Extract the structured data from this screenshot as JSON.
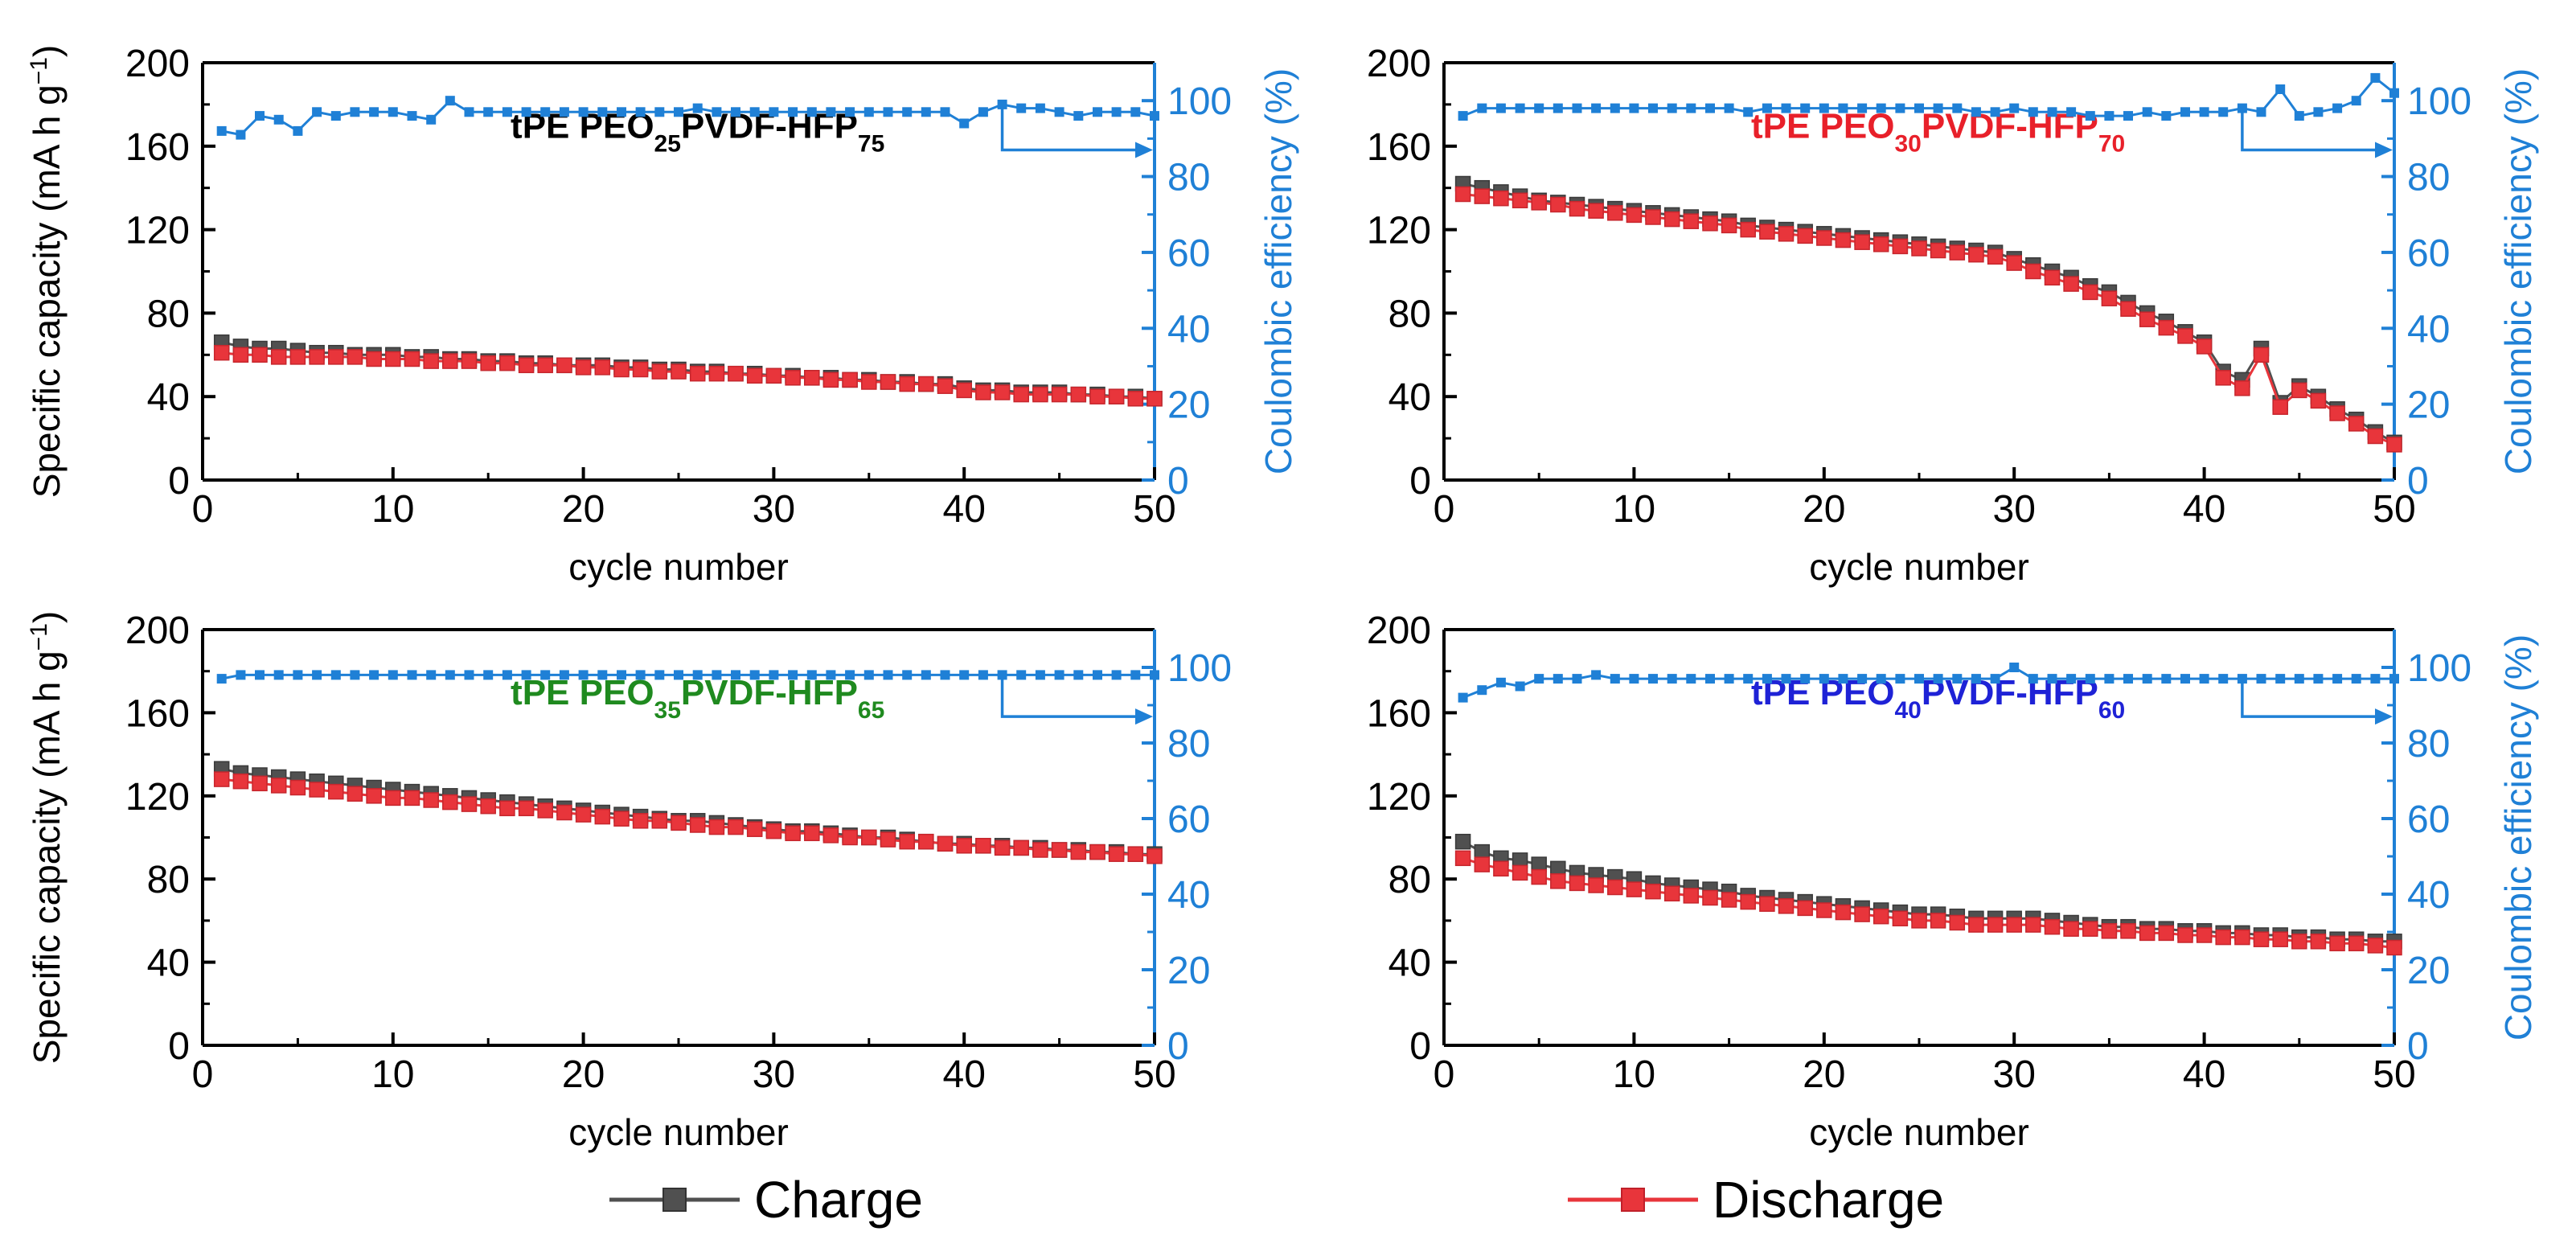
{
  "legend": {
    "charge_label": "Charge",
    "discharge_label": "Discharge"
  },
  "colors": {
    "charge": "#505050",
    "discharge": "#e8353b",
    "efficiency": "#1f80d6"
  },
  "chart_data": [
    {
      "type": "line",
      "panel": "top-left",
      "title_main": "tPE PEO",
      "title_sub1": "25",
      "title_mid": "PVDF-HFP",
      "title_sub2": "75",
      "title_color": "#000000",
      "xlabel": "cycle number",
      "ylabel": "Specific capacity (mA h g",
      "ylabel_sup": "−1",
      "ylabel_end": ")",
      "y2label": "Coulombic efficiency (%)",
      "xlim": [
        0,
        50
      ],
      "ylim": [
        0,
        200
      ],
      "y2lim": [
        0,
        110
      ],
      "xticks": [
        "0",
        "10",
        "20",
        "30",
        "40",
        "50"
      ],
      "yticks": [
        "0",
        "40",
        "80",
        "120",
        "160",
        "200"
      ],
      "y2ticks": [
        "0",
        "20",
        "40",
        "60",
        "80",
        "100"
      ],
      "x": [
        1,
        2,
        3,
        4,
        5,
        6,
        7,
        8,
        9,
        10,
        11,
        12,
        13,
        14,
        15,
        16,
        17,
        18,
        19,
        20,
        21,
        22,
        23,
        24,
        25,
        26,
        27,
        28,
        29,
        30,
        31,
        32,
        33,
        34,
        35,
        36,
        37,
        38,
        39,
        40,
        41,
        42,
        43,
        44,
        45,
        46,
        47,
        48,
        49,
        50
      ],
      "series": [
        {
          "name": "Charge",
          "axis": "left",
          "values": [
            66,
            64,
            63,
            63,
            62,
            61,
            61,
            60,
            60,
            60,
            59,
            59,
            58,
            58,
            57,
            57,
            56,
            56,
            55,
            55,
            55,
            54,
            54,
            53,
            53,
            52,
            52,
            51,
            51,
            50,
            50,
            49,
            49,
            48,
            48,
            47,
            47,
            46,
            46,
            44,
            43,
            43,
            42,
            42,
            42,
            41,
            41,
            40,
            40,
            39
          ]
        },
        {
          "name": "Discharge",
          "axis": "left",
          "values": [
            61,
            60,
            60,
            59,
            59,
            59,
            59,
            59,
            58,
            58,
            58,
            57,
            57,
            57,
            56,
            56,
            55,
            55,
            55,
            54,
            54,
            53,
            53,
            52,
            52,
            51,
            51,
            51,
            50,
            50,
            49,
            49,
            48,
            48,
            47,
            47,
            46,
            46,
            45,
            43,
            42,
            42,
            41,
            41,
            41,
            41,
            40,
            40,
            39,
            39
          ]
        },
        {
          "name": "Coulombic efficiency",
          "axis": "right",
          "values": [
            92,
            91,
            96,
            95,
            92,
            97,
            96,
            97,
            97,
            97,
            96,
            95,
            100,
            97,
            97,
            97,
            97,
            97,
            97,
            97,
            97,
            97,
            97,
            97,
            97,
            98,
            97,
            97,
            97,
            97,
            97,
            97,
            97,
            97,
            97,
            97,
            97,
            97,
            97,
            94,
            97,
            99,
            98,
            98,
            97,
            96,
            97,
            97,
            97,
            96
          ]
        }
      ]
    },
    {
      "type": "line",
      "panel": "top-right",
      "title_main": "tPE PEO",
      "title_sub1": "30",
      "title_mid": "PVDF-HFP",
      "title_sub2": "70",
      "title_color": "#e8202a",
      "xlabel": "cycle number",
      "ylabel": "",
      "ylabel_sup": "",
      "ylabel_end": "",
      "y2label": "Coulombic efficiency (%)",
      "xlim": [
        0,
        50
      ],
      "ylim": [
        0,
        200
      ],
      "y2lim": [
        0,
        110
      ],
      "xticks": [
        "0",
        "10",
        "20",
        "30",
        "40",
        "50"
      ],
      "yticks": [
        "0",
        "40",
        "80",
        "120",
        "160",
        "200"
      ],
      "y2ticks": [
        "0",
        "20",
        "40",
        "60",
        "80",
        "100"
      ],
      "x": [
        1,
        2,
        3,
        4,
        5,
        6,
        7,
        8,
        9,
        10,
        11,
        12,
        13,
        14,
        15,
        16,
        17,
        18,
        19,
        20,
        21,
        22,
        23,
        24,
        25,
        26,
        27,
        28,
        29,
        30,
        31,
        32,
        33,
        34,
        35,
        36,
        37,
        38,
        39,
        40,
        41,
        42,
        43,
        44,
        45,
        46,
        47,
        48,
        49,
        50
      ],
      "series": [
        {
          "name": "Charge",
          "axis": "left",
          "values": [
            142,
            140,
            138,
            136,
            134,
            133,
            132,
            131,
            130,
            129,
            128,
            127,
            126,
            125,
            124,
            122,
            121,
            120,
            119,
            118,
            117,
            116,
            115,
            114,
            113,
            112,
            111,
            110,
            109,
            106,
            103,
            100,
            97,
            93,
            90,
            85,
            80,
            76,
            71,
            66,
            52,
            48,
            63,
            37,
            45,
            40,
            34,
            29,
            23,
            18
          ]
        },
        {
          "name": "Discharge",
          "axis": "left",
          "values": [
            137,
            136,
            135,
            134,
            133,
            132,
            130,
            129,
            128,
            127,
            126,
            125,
            124,
            123,
            122,
            120,
            119,
            118,
            117,
            116,
            115,
            114,
            113,
            112,
            111,
            110,
            109,
            108,
            107,
            104,
            100,
            97,
            94,
            90,
            87,
            82,
            77,
            73,
            69,
            64,
            49,
            44,
            60,
            35,
            43,
            38,
            32,
            27,
            21,
            17
          ]
        },
        {
          "name": "Coulombic efficiency",
          "axis": "right",
          "values": [
            96,
            98,
            98,
            98,
            98,
            98,
            98,
            98,
            98,
            98,
            98,
            98,
            98,
            98,
            98,
            97,
            98,
            98,
            98,
            98,
            98,
            98,
            98,
            98,
            98,
            98,
            98,
            97,
            97,
            98,
            97,
            97,
            97,
            96,
            96,
            96,
            97,
            96,
            97,
            97,
            97,
            98,
            97,
            103,
            96,
            97,
            98,
            100,
            106,
            102
          ]
        }
      ]
    },
    {
      "type": "line",
      "panel": "bottom-left",
      "title_main": "tPE PEO",
      "title_sub1": "35",
      "title_mid": "PVDF-HFP",
      "title_sub2": "65",
      "title_color": "#1f8a1f",
      "xlabel": "cycle number",
      "ylabel": "Specific capacity (mA h g",
      "ylabel_sup": "−1",
      "ylabel_end": ")",
      "y2label": "",
      "xlim": [
        0,
        50
      ],
      "ylim": [
        0,
        200
      ],
      "y2lim": [
        0,
        110
      ],
      "xticks": [
        "0",
        "10",
        "20",
        "30",
        "40",
        "50"
      ],
      "yticks": [
        "0",
        "40",
        "80",
        "120",
        "160",
        "200"
      ],
      "y2ticks": [
        "0",
        "20",
        "40",
        "60",
        "80",
        "100"
      ],
      "x": [
        1,
        2,
        3,
        4,
        5,
        6,
        7,
        8,
        9,
        10,
        11,
        12,
        13,
        14,
        15,
        16,
        17,
        18,
        19,
        20,
        21,
        22,
        23,
        24,
        25,
        26,
        27,
        28,
        29,
        30,
        31,
        32,
        33,
        34,
        35,
        36,
        37,
        38,
        39,
        40,
        41,
        42,
        43,
        44,
        45,
        46,
        47,
        48,
        49,
        50
      ],
      "series": [
        {
          "name": "Charge",
          "axis": "left",
          "values": [
            133,
            131,
            130,
            129,
            128,
            127,
            126,
            125,
            124,
            123,
            122,
            121,
            120,
            119,
            118,
            117,
            116,
            115,
            114,
            113,
            112,
            111,
            110,
            109,
            108,
            108,
            107,
            106,
            105,
            104,
            103,
            103,
            102,
            101,
            100,
            100,
            99,
            98,
            97,
            97,
            96,
            96,
            95,
            95,
            94,
            94,
            93,
            93,
            92,
            92
          ]
        },
        {
          "name": "Discharge",
          "axis": "left",
          "values": [
            128,
            127,
            126,
            125,
            124,
            123,
            122,
            121,
            120,
            119,
            119,
            118,
            117,
            116,
            115,
            114,
            114,
            113,
            112,
            111,
            110,
            109,
            108,
            108,
            107,
            106,
            105,
            105,
            104,
            103,
            102,
            102,
            101,
            100,
            100,
            99,
            98,
            98,
            97,
            96,
            96,
            95,
            95,
            94,
            94,
            93,
            93,
            92,
            92,
            91
          ]
        },
        {
          "name": "Coulombic efficiency",
          "axis": "right",
          "values": [
            97,
            98,
            98,
            98,
            98,
            98,
            98,
            98,
            98,
            98,
            98,
            98,
            98,
            98,
            98,
            98,
            98,
            98,
            98,
            98,
            98,
            98,
            98,
            98,
            98,
            98,
            98,
            98,
            98,
            98,
            98,
            98,
            98,
            98,
            98,
            98,
            98,
            98,
            98,
            98,
            98,
            98,
            98,
            98,
            98,
            98,
            98,
            98,
            98,
            98
          ]
        }
      ]
    },
    {
      "type": "line",
      "panel": "bottom-right",
      "title_main": "tPE PEO",
      "title_sub1": "40",
      "title_mid": "PVDF-HFP",
      "title_sub2": "60",
      "title_color": "#1e22d6",
      "xlabel": "cycle number",
      "ylabel": "",
      "ylabel_sup": "",
      "ylabel_end": "",
      "y2label": "Coulombic efficiency (%)",
      "xlim": [
        0,
        50
      ],
      "ylim": [
        0,
        200
      ],
      "y2lim": [
        0,
        110
      ],
      "xticks": [
        "0",
        "10",
        "20",
        "30",
        "40",
        "50"
      ],
      "yticks": [
        "0",
        "40",
        "80",
        "120",
        "160",
        "200"
      ],
      "y2ticks": [
        "0",
        "20",
        "40",
        "60",
        "80",
        "100"
      ],
      "x": [
        1,
        2,
        3,
        4,
        5,
        6,
        7,
        8,
        9,
        10,
        11,
        12,
        13,
        14,
        15,
        16,
        17,
        18,
        19,
        20,
        21,
        22,
        23,
        24,
        25,
        26,
        27,
        28,
        29,
        30,
        31,
        32,
        33,
        34,
        35,
        36,
        37,
        38,
        39,
        40,
        41,
        42,
        43,
        44,
        45,
        46,
        47,
        48,
        49,
        50
      ],
      "series": [
        {
          "name": "Charge",
          "axis": "left",
          "values": [
            98,
            93,
            90,
            89,
            87,
            85,
            83,
            82,
            81,
            80,
            78,
            77,
            76,
            75,
            74,
            72,
            71,
            70,
            69,
            68,
            67,
            66,
            65,
            64,
            63,
            63,
            62,
            61,
            61,
            61,
            61,
            60,
            59,
            58,
            57,
            57,
            56,
            56,
            55,
            55,
            54,
            54,
            53,
            53,
            52,
            52,
            51,
            51,
            50,
            50
          ]
        },
        {
          "name": "Discharge",
          "axis": "left",
          "values": [
            90,
            87,
            85,
            83,
            81,
            79,
            78,
            77,
            76,
            75,
            74,
            73,
            72,
            71,
            70,
            69,
            68,
            67,
            66,
            65,
            64,
            63,
            62,
            61,
            60,
            60,
            59,
            58,
            58,
            58,
            58,
            57,
            56,
            56,
            55,
            55,
            54,
            54,
            53,
            53,
            52,
            52,
            51,
            51,
            50,
            50,
            49,
            49,
            48,
            47
          ]
        },
        {
          "name": "Coulombic efficiency",
          "axis": "right",
          "values": [
            92,
            94,
            96,
            95,
            97,
            97,
            97,
            98,
            97,
            97,
            97,
            97,
            97,
            97,
            97,
            97,
            97,
            97,
            97,
            97,
            97,
            97,
            97,
            97,
            97,
            97,
            97,
            97,
            97,
            100,
            97,
            97,
            97,
            97,
            97,
            97,
            97,
            97,
            97,
            97,
            97,
            97,
            97,
            97,
            97,
            97,
            97,
            97,
            97,
            97
          ]
        }
      ]
    }
  ]
}
